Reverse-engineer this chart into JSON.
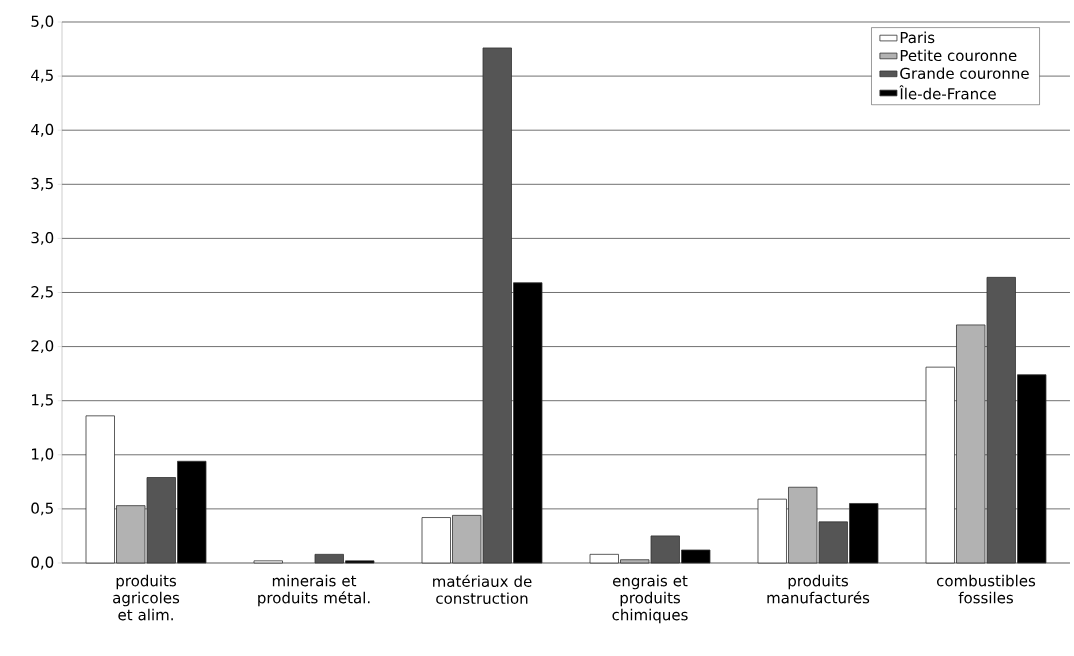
{
  "chart_data": {
    "type": "bar",
    "categories": [
      "produits agricoles et alim.",
      "minerais et produits métal.",
      "matériaux de construction",
      "engrais et produits chimiques",
      "produits manufacturés",
      "combustibles fossiles"
    ],
    "series": [
      {
        "name": "Paris",
        "color": "#ffffff",
        "values": [
          1.36,
          0.02,
          0.42,
          0.08,
          0.59,
          1.81
        ]
      },
      {
        "name": "Petite couronne",
        "color": "#b2b2b2",
        "values": [
          0.53,
          null,
          0.44,
          0.03,
          0.7,
          2.2
        ]
      },
      {
        "name": "Grande couronne",
        "color": "#555555",
        "values": [
          0.79,
          0.08,
          4.76,
          0.25,
          0.38,
          2.64
        ]
      },
      {
        "name": "Île-de-France",
        "color": "#000000",
        "values": [
          0.94,
          0.02,
          2.59,
          0.12,
          0.55,
          1.74
        ]
      }
    ],
    "ylim": [
      0,
      5
    ],
    "yticks": [
      {
        "value": 0,
        "label": "0,0"
      },
      {
        "value": 0.5,
        "label": "0,5"
      },
      {
        "value": 1,
        "label": "1,0"
      },
      {
        "value": 1.5,
        "label": "1,5"
      },
      {
        "value": 2,
        "label": "2,0"
      },
      {
        "value": 2.5,
        "label": "2,5"
      },
      {
        "value": 3,
        "label": "3,0"
      },
      {
        "value": 3.5,
        "label": "3,5"
      },
      {
        "value": 4,
        "label": "4,0"
      },
      {
        "value": 4.5,
        "label": "4,5"
      },
      {
        "value": 5,
        "label": "5,0"
      }
    ],
    "grid": "y",
    "legend": "top right"
  }
}
